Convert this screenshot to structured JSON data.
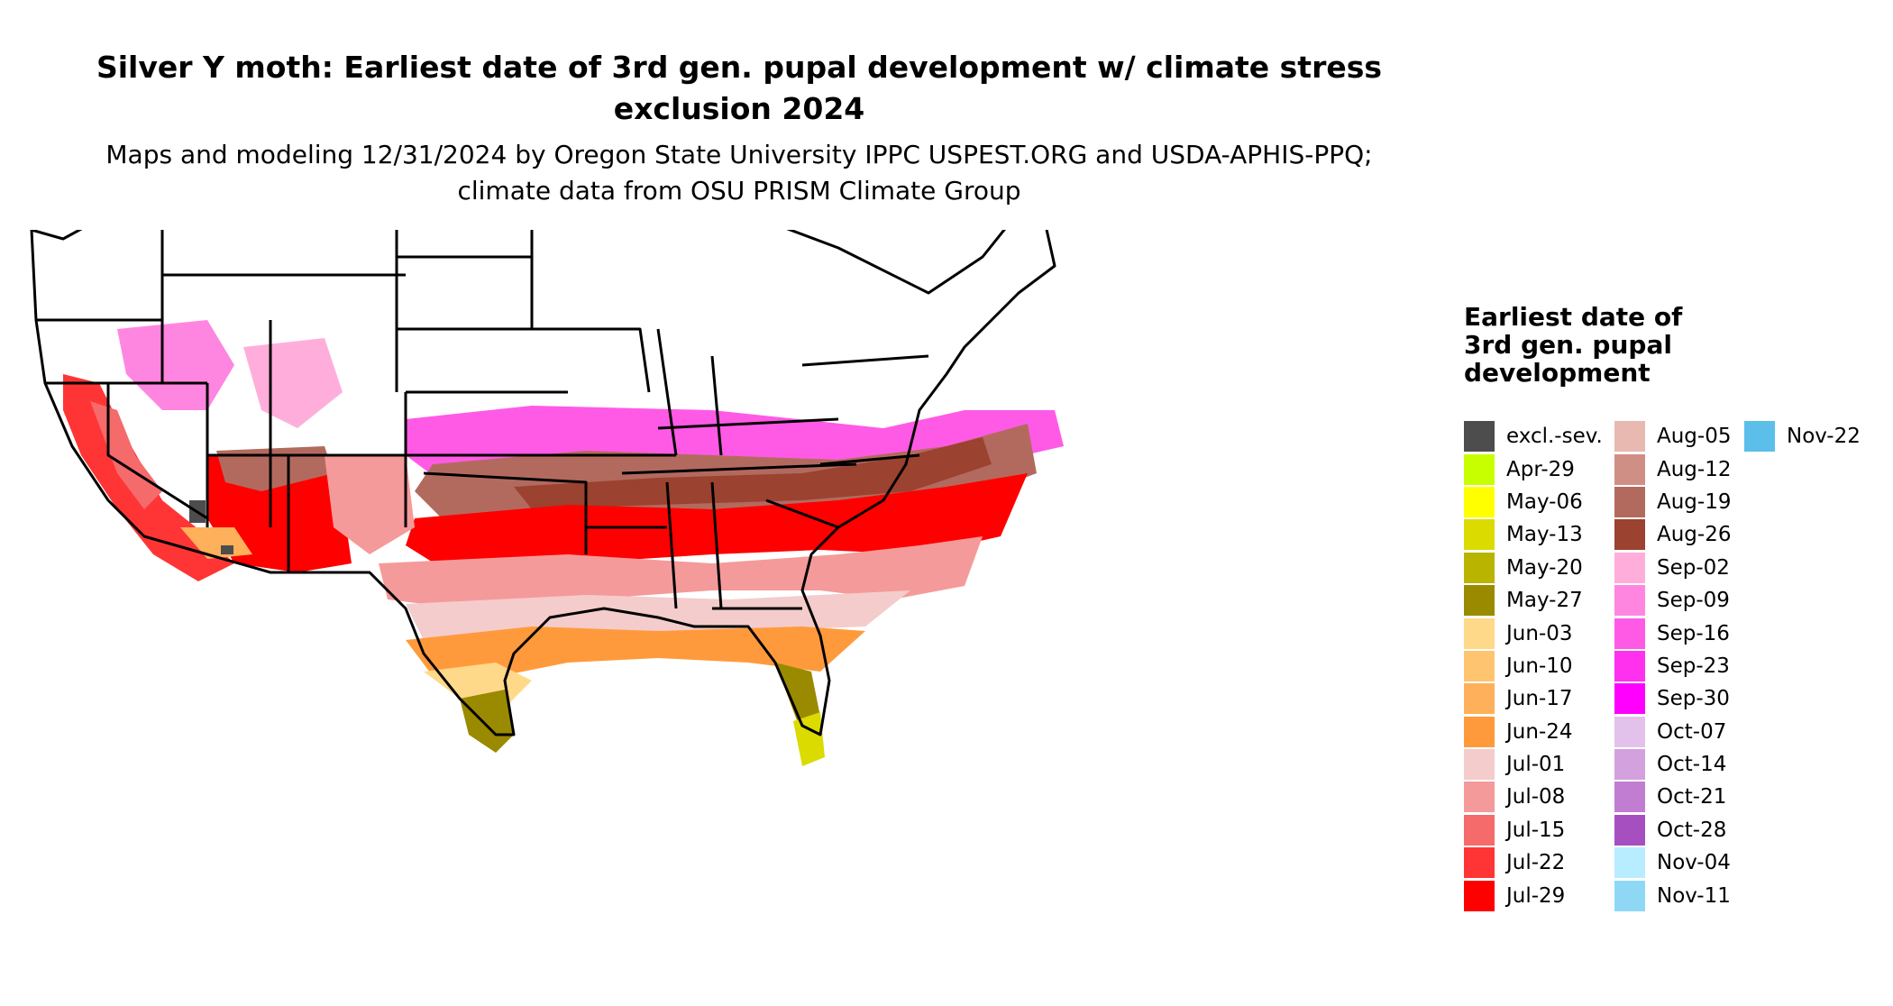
{
  "title": "Silver Y moth: Earliest date of 3rd gen. pupal development w/ climate stress exclusion 2024",
  "subtitle": "Maps and modeling 12/31/2024 by Oregon State University IPPC USPEST.ORG and USDA-APHIS-PPQ; climate data from OSU PRISM Climate Group",
  "legend": {
    "title": "Earliest date of 3rd gen. pupal development",
    "items": [
      {
        "label": "excl.-sev.",
        "color": "#4d4d4d"
      },
      {
        "label": "Apr-29",
        "color": "#c8ff00"
      },
      {
        "label": "May-06",
        "color": "#ffff00"
      },
      {
        "label": "May-13",
        "color": "#dbdb00"
      },
      {
        "label": "May-20",
        "color": "#b8b400"
      },
      {
        "label": "May-27",
        "color": "#9a8a00"
      },
      {
        "label": "Jun-03",
        "color": "#ffd98a"
      },
      {
        "label": "Jun-10",
        "color": "#ffc470"
      },
      {
        "label": "Jun-17",
        "color": "#ffb05a"
      },
      {
        "label": "Jun-24",
        "color": "#ff9a3c"
      },
      {
        "label": "Jul-01",
        "color": "#f4cccc"
      },
      {
        "label": "Jul-08",
        "color": "#f59a9a"
      },
      {
        "label": "Jul-15",
        "color": "#f56a6a"
      },
      {
        "label": "Jul-22",
        "color": "#ff3535"
      },
      {
        "label": "Jul-29",
        "color": "#ff0000"
      },
      {
        "label": "Aug-05",
        "color": "#e8b9b0"
      },
      {
        "label": "Aug-12",
        "color": "#cf8f84"
      },
      {
        "label": "Aug-19",
        "color": "#b36a5e"
      },
      {
        "label": "Aug-26",
        "color": "#9b4230"
      },
      {
        "label": "Sep-02",
        "color": "#ffaedc"
      },
      {
        "label": "Sep-09",
        "color": "#ff86e0"
      },
      {
        "label": "Sep-16",
        "color": "#ff5ae6"
      },
      {
        "label": "Sep-23",
        "color": "#ff30ee"
      },
      {
        "label": "Sep-30",
        "color": "#ff00ff"
      },
      {
        "label": "Oct-07",
        "color": "#e2c2ea"
      },
      {
        "label": "Oct-14",
        "color": "#d3a1de"
      },
      {
        "label": "Oct-21",
        "color": "#c07dd2"
      },
      {
        "label": "Oct-28",
        "color": "#a54fc0"
      },
      {
        "label": "Nov-04",
        "color": "#b8ecff"
      },
      {
        "label": "Nov-11",
        "color": "#8fd8f5"
      },
      {
        "label": "Nov-22",
        "color": "#5bbfea"
      }
    ]
  }
}
